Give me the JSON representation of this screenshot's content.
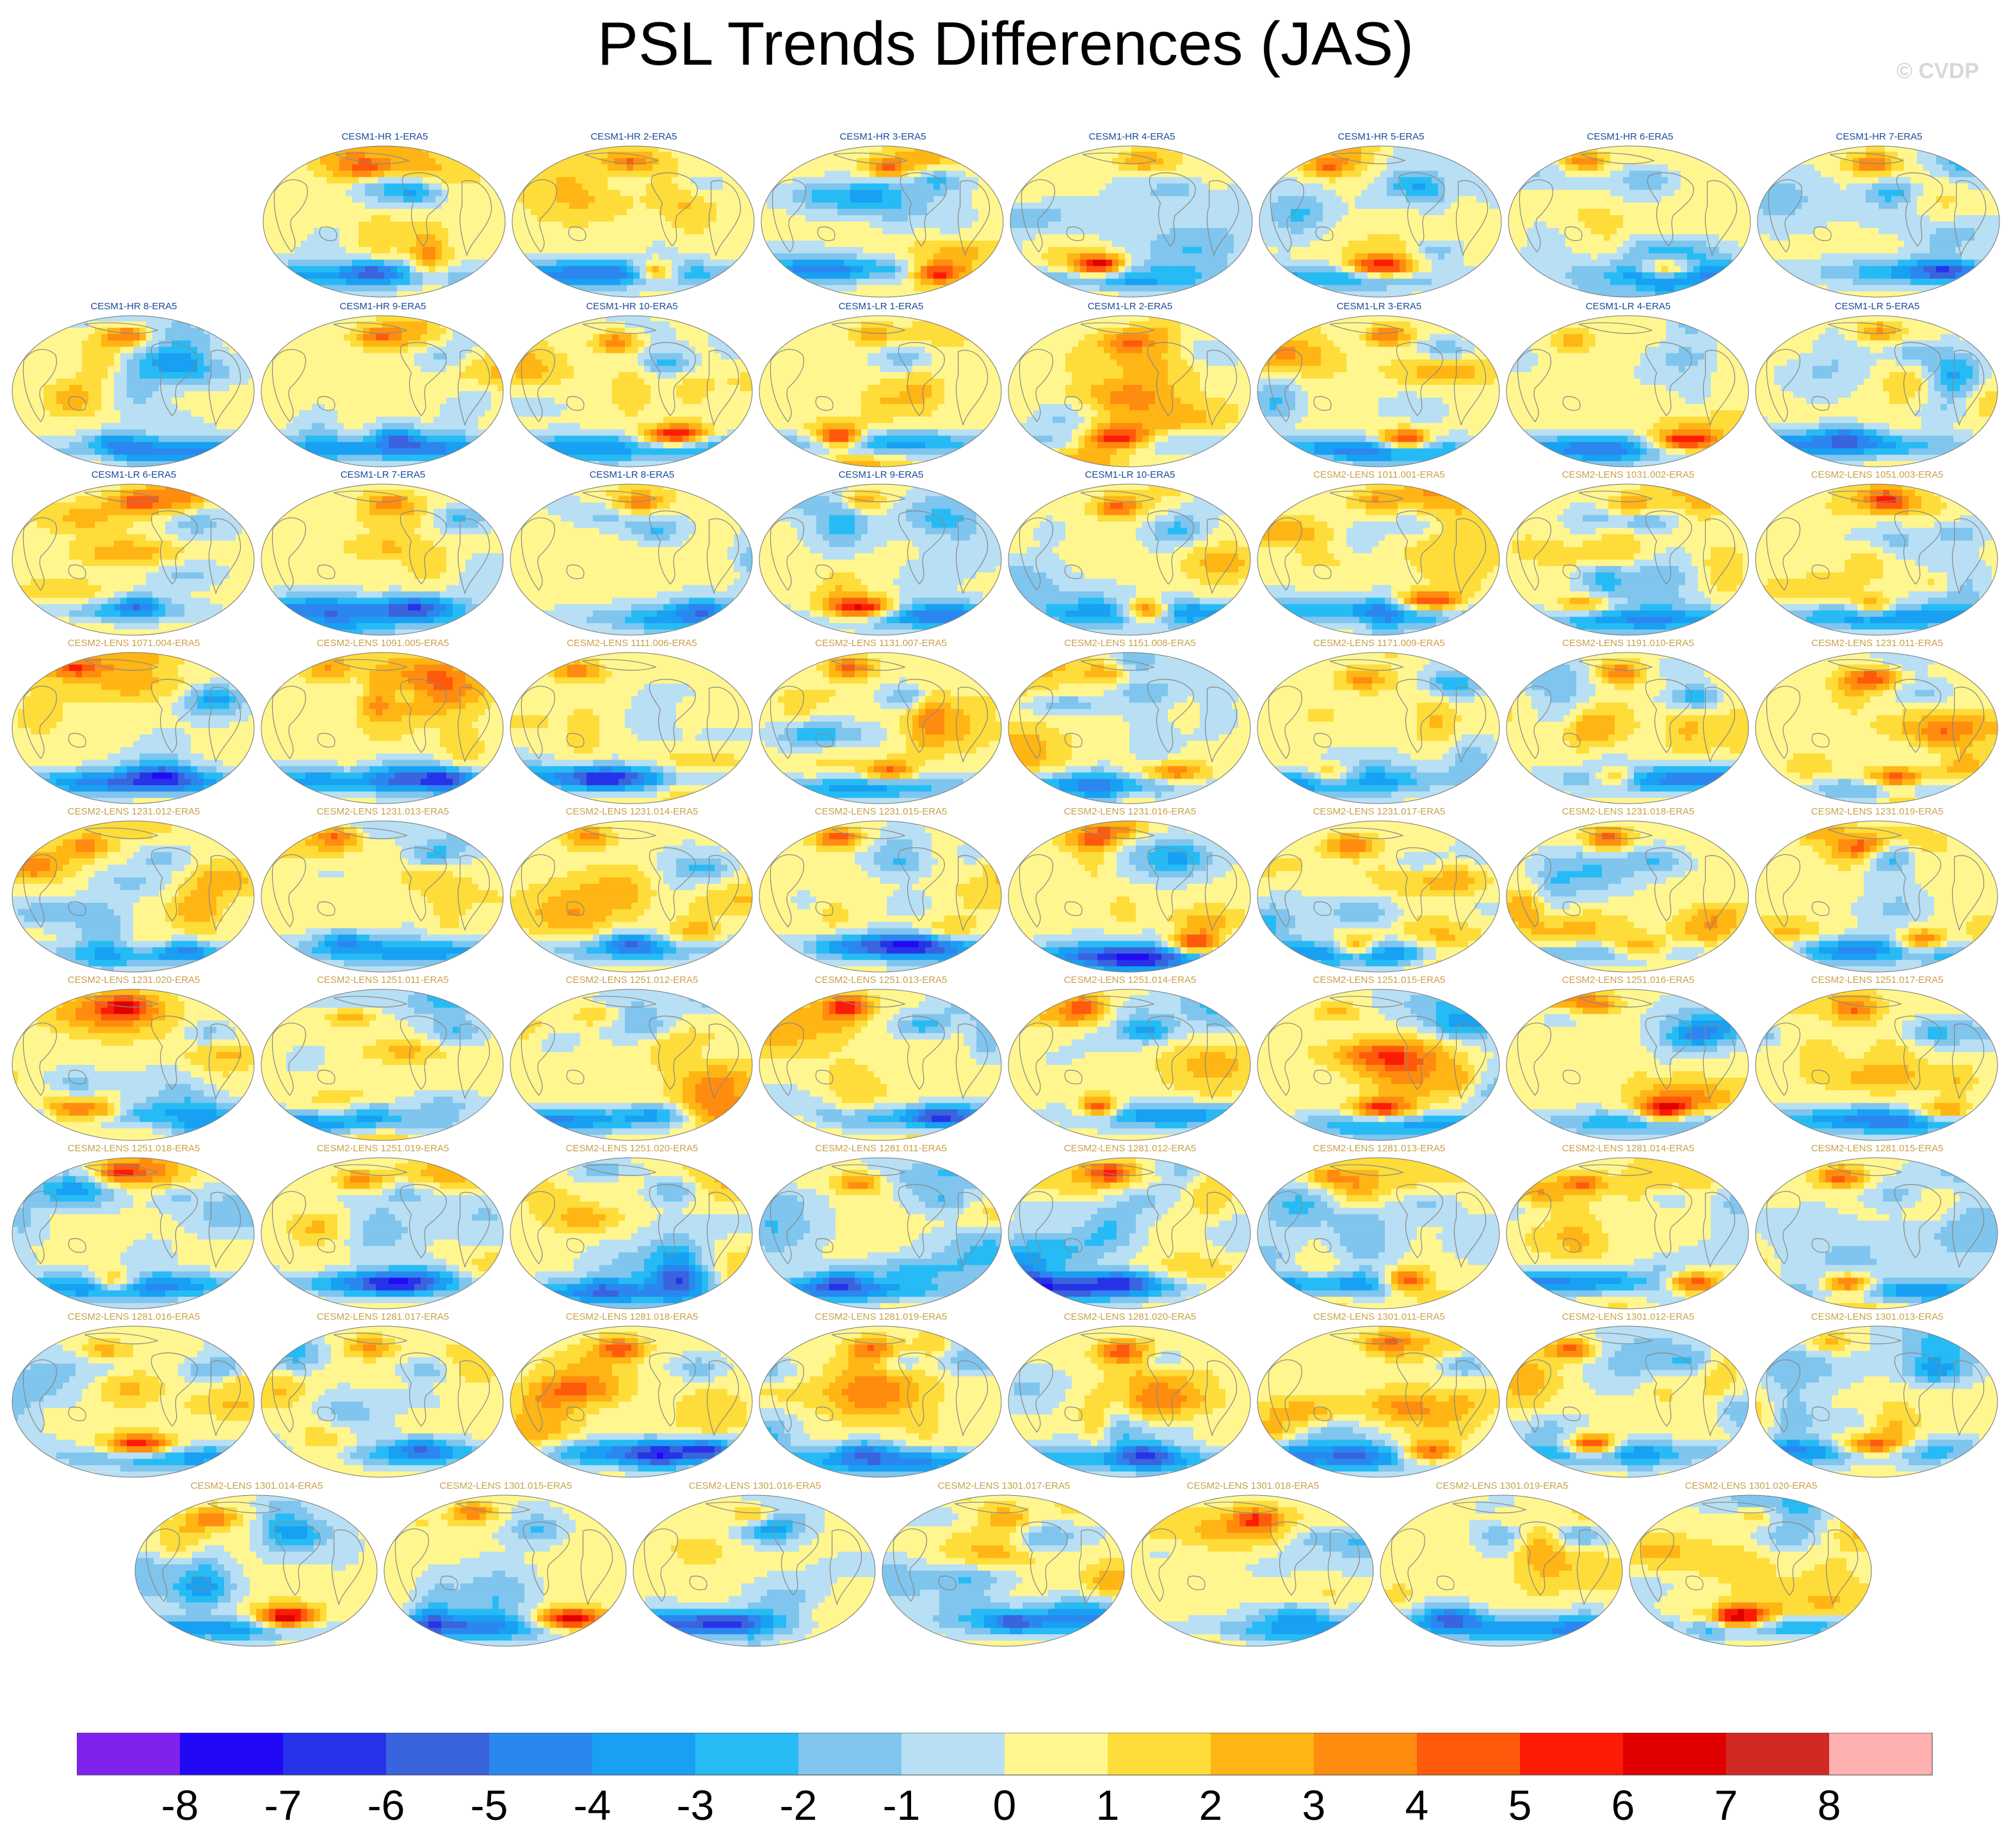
{
  "title": "PSL Trends Differences (JAS)",
  "watermark": "© CVDP",
  "colors": {
    "cesm1_label": "#1a4a9a",
    "cesm2_label": "#c8a24a",
    "coastline": "#888888"
  },
  "chart_data": {
    "type": "heatmap",
    "description_type": "panel map grid",
    "title": "PSL Trends Differences (JAS)",
    "panels": [
      {
        "label": "CESM1-HR 1-ERA5",
        "family": "cesm1"
      },
      {
        "label": "CESM1-HR 2-ERA5",
        "family": "cesm1"
      },
      {
        "label": "CESM1-HR 3-ERA5",
        "family": "cesm1"
      },
      {
        "label": "CESM1-HR 4-ERA5",
        "family": "cesm1"
      },
      {
        "label": "CESM1-HR 5-ERA5",
        "family": "cesm1"
      },
      {
        "label": "CESM1-HR 6-ERA5",
        "family": "cesm1"
      },
      {
        "label": "CESM1-HR 7-ERA5",
        "family": "cesm1"
      },
      {
        "label": "CESM1-HR 8-ERA5",
        "family": "cesm1"
      },
      {
        "label": "CESM1-HR 9-ERA5",
        "family": "cesm1"
      },
      {
        "label": "CESM1-HR 10-ERA5",
        "family": "cesm1"
      },
      {
        "label": "CESM1-LR 1-ERA5",
        "family": "cesm1"
      },
      {
        "label": "CESM1-LR 2-ERA5",
        "family": "cesm1"
      },
      {
        "label": "CESM1-LR 3-ERA5",
        "family": "cesm1"
      },
      {
        "label": "CESM1-LR 4-ERA5",
        "family": "cesm1"
      },
      {
        "label": "CESM1-LR 5-ERA5",
        "family": "cesm1"
      },
      {
        "label": "CESM1-LR 6-ERA5",
        "family": "cesm1"
      },
      {
        "label": "CESM1-LR 7-ERA5",
        "family": "cesm1"
      },
      {
        "label": "CESM1-LR 8-ERA5",
        "family": "cesm1"
      },
      {
        "label": "CESM1-LR 9-ERA5",
        "family": "cesm1"
      },
      {
        "label": "CESM1-LR 10-ERA5",
        "family": "cesm1"
      },
      {
        "label": "CESM2-LENS 1011.001-ERA5",
        "family": "cesm2"
      },
      {
        "label": "CESM2-LENS 1031.002-ERA5",
        "family": "cesm2"
      },
      {
        "label": "CESM2-LENS 1051.003-ERA5",
        "family": "cesm2"
      },
      {
        "label": "CESM2-LENS 1071.004-ERA5",
        "family": "cesm2"
      },
      {
        "label": "CESM2-LENS 1091.005-ERA5",
        "family": "cesm2"
      },
      {
        "label": "CESM2-LENS 1111.006-ERA5",
        "family": "cesm2"
      },
      {
        "label": "CESM2-LENS 1131.007-ERA5",
        "family": "cesm2"
      },
      {
        "label": "CESM2-LENS 1151.008-ERA5",
        "family": "cesm2"
      },
      {
        "label": "CESM2-LENS 1171.009-ERA5",
        "family": "cesm2"
      },
      {
        "label": "CESM2-LENS 1191.010-ERA5",
        "family": "cesm2"
      },
      {
        "label": "CESM2-LENS 1231.011-ERA5",
        "family": "cesm2"
      },
      {
        "label": "CESM2-LENS 1231.012-ERA5",
        "family": "cesm2"
      },
      {
        "label": "CESM2-LENS 1231.013-ERA5",
        "family": "cesm2"
      },
      {
        "label": "CESM2-LENS 1231.014-ERA5",
        "family": "cesm2"
      },
      {
        "label": "CESM2-LENS 1231.015-ERA5",
        "family": "cesm2"
      },
      {
        "label": "CESM2-LENS 1231.016-ERA5",
        "family": "cesm2"
      },
      {
        "label": "CESM2-LENS 1231.017-ERA5",
        "family": "cesm2"
      },
      {
        "label": "CESM2-LENS 1231.018-ERA5",
        "family": "cesm2"
      },
      {
        "label": "CESM2-LENS 1231.019-ERA5",
        "family": "cesm2"
      },
      {
        "label": "CESM2-LENS 1231.020-ERA5",
        "family": "cesm2"
      },
      {
        "label": "CESM2-LENS 1251.011-ERA5",
        "family": "cesm2"
      },
      {
        "label": "CESM2-LENS 1251.012-ERA5",
        "family": "cesm2"
      },
      {
        "label": "CESM2-LENS 1251.013-ERA5",
        "family": "cesm2"
      },
      {
        "label": "CESM2-LENS 1251.014-ERA5",
        "family": "cesm2"
      },
      {
        "label": "CESM2-LENS 1251.015-ERA5",
        "family": "cesm2"
      },
      {
        "label": "CESM2-LENS 1251.016-ERA5",
        "family": "cesm2"
      },
      {
        "label": "CESM2-LENS 1251.017-ERA5",
        "family": "cesm2"
      },
      {
        "label": "CESM2-LENS 1251.018-ERA5",
        "family": "cesm2"
      },
      {
        "label": "CESM2-LENS 1251.019-ERA5",
        "family": "cesm2"
      },
      {
        "label": "CESM2-LENS 1251.020-ERA5",
        "family": "cesm2"
      },
      {
        "label": "CESM2-LENS 1281.011-ERA5",
        "family": "cesm2"
      },
      {
        "label": "CESM2-LENS 1281.012-ERA5",
        "family": "cesm2"
      },
      {
        "label": "CESM2-LENS 1281.013-ERA5",
        "family": "cesm2"
      },
      {
        "label": "CESM2-LENS 1281.014-ERA5",
        "family": "cesm2"
      },
      {
        "label": "CESM2-LENS 1281.015-ERA5",
        "family": "cesm2"
      },
      {
        "label": "CESM2-LENS 1281.016-ERA5",
        "family": "cesm2"
      },
      {
        "label": "CESM2-LENS 1281.017-ERA5",
        "family": "cesm2"
      },
      {
        "label": "CESM2-LENS 1281.018-ERA5",
        "family": "cesm2"
      },
      {
        "label": "CESM2-LENS 1281.019-ERA5",
        "family": "cesm2"
      },
      {
        "label": "CESM2-LENS 1281.020-ERA5",
        "family": "cesm2"
      },
      {
        "label": "CESM2-LENS 1301.011-ERA5",
        "family": "cesm2"
      },
      {
        "label": "CESM2-LENS 1301.012-ERA5",
        "family": "cesm2"
      },
      {
        "label": "CESM2-LENS 1301.013-ERA5",
        "family": "cesm2"
      },
      {
        "label": "CESM2-LENS 1301.014-ERA5",
        "family": "cesm2"
      },
      {
        "label": "CESM2-LENS 1301.015-ERA5",
        "family": "cesm2"
      },
      {
        "label": "CESM2-LENS 1301.016-ERA5",
        "family": "cesm2"
      },
      {
        "label": "CESM2-LENS 1301.017-ERA5",
        "family": "cesm2"
      },
      {
        "label": "CESM2-LENS 1301.018-ERA5",
        "family": "cesm2"
      },
      {
        "label": "CESM2-LENS 1301.019-ERA5",
        "family": "cesm2"
      },
      {
        "label": "CESM2-LENS 1301.020-ERA5",
        "family": "cesm2"
      }
    ],
    "colorbar": {
      "levels": [
        -8,
        -7,
        -6,
        -5,
        -4,
        -3,
        -2,
        -1,
        0,
        1,
        2,
        3,
        4,
        5,
        6,
        7,
        8
      ],
      "tick_labels": [
        "-8",
        "-7",
        "-6",
        "-5",
        "-4",
        "-3",
        "-2",
        "-1",
        "0",
        "1",
        "2",
        "3",
        "4",
        "5",
        "6",
        "7",
        "8"
      ],
      "colors": [
        "#8022ee",
        "#2209f5",
        "#2733e8",
        "#3a63de",
        "#2b87f0",
        "#18a0f2",
        "#27bbf5",
        "#7fc5ee",
        "#b8dff3",
        "#fff68f",
        "#fedc3a",
        "#ffb513",
        "#ff8c0e",
        "#ff5a0c",
        "#fc1c06",
        "#e00000",
        "#d12a25",
        "#ffb1b1"
      ]
    }
  }
}
